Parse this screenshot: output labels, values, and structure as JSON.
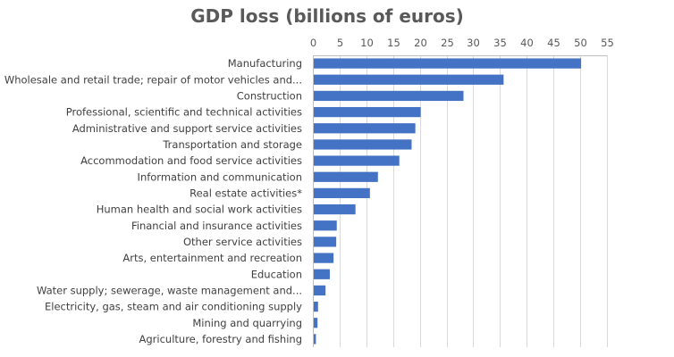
{
  "chart_data": {
    "type": "bar",
    "orientation": "horizontal",
    "title": "GDP loss (billions of euros)",
    "xlabel": "",
    "ylabel": "",
    "xlim": [
      0,
      55
    ],
    "ticks": [
      "0",
      "5",
      "10",
      "15",
      "20",
      "25",
      "30",
      "35",
      "40",
      "45",
      "50",
      "55"
    ],
    "tick_values": [
      0,
      5,
      10,
      15,
      20,
      25,
      30,
      35,
      40,
      45,
      50,
      55
    ],
    "axis_position": "top",
    "grid": true,
    "legend": "none",
    "bar_color": "#4472c4",
    "categories": [
      "Manufacturing",
      "Wholesale and retail trade; repair of motor vehicles and...",
      "Construction",
      "Professional, scientific and technical activities",
      "Administrative and support service activities",
      "Transportation and storage",
      "Accommodation and food service activities",
      "Information and communication",
      "Real estate activities*",
      "Human health and social work activities",
      "Financial and insurance activities",
      "Other service activities",
      "Arts, entertainment and recreation",
      "Education",
      "Water supply; sewerage, waste management and...",
      "Electricity, gas, steam and air conditioning supply",
      "Mining and quarrying",
      "Agriculture, forestry and fishing"
    ],
    "values": [
      50.0,
      35.5,
      28.0,
      20.0,
      19.0,
      18.3,
      16.0,
      12.0,
      10.5,
      7.8,
      4.3,
      4.2,
      3.7,
      3.0,
      2.2,
      0.8,
      0.7,
      0.4
    ]
  }
}
